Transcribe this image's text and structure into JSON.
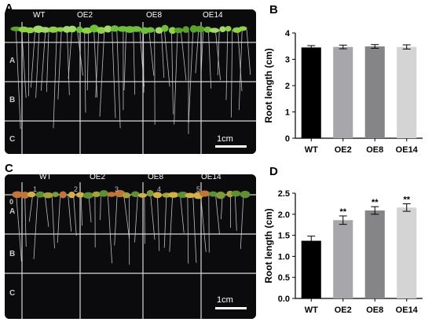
{
  "panels": {
    "a": {
      "letter": "A",
      "genotype_labels": [
        "WT",
        "OE2",
        "OE8",
        "OE14"
      ],
      "row_labels": [
        "A",
        "B",
        "C"
      ],
      "scale_label": "1cm"
    },
    "b": {
      "letter": "B"
    },
    "c": {
      "letter": "C",
      "genotype_labels": [
        "WT",
        "OE2",
        "OE8",
        "OE14"
      ],
      "row_labels": [
        "A",
        "B",
        "C"
      ],
      "number_labels": [
        "1",
        "2",
        "3",
        "4",
        "5"
      ],
      "scale_label": "1cm",
      "top_label": "0"
    },
    "d": {
      "letter": "D"
    }
  },
  "chart_data": [
    {
      "id": "B",
      "type": "bar",
      "categories": [
        "WT",
        "OE2",
        "OE8",
        "OE14"
      ],
      "values": [
        3.45,
        3.47,
        3.49,
        3.47
      ],
      "errors": [
        0.07,
        0.07,
        0.07,
        0.08
      ],
      "bar_colors": [
        "#000000",
        "#a7a7ab",
        "#858587",
        "#d4d4d4"
      ],
      "annotations": [
        "",
        "",
        "",
        ""
      ],
      "ylabel": "Root length (cm)",
      "ylim": [
        0,
        4
      ],
      "yticks": [
        "0",
        "1",
        "2",
        "3",
        "4"
      ],
      "grid": false
    },
    {
      "id": "D",
      "type": "bar",
      "categories": [
        "WT",
        "OE2",
        "OE8",
        "OE14"
      ],
      "values": [
        1.37,
        1.86,
        2.09,
        2.16
      ],
      "errors": [
        0.11,
        0.1,
        0.09,
        0.09
      ],
      "bar_colors": [
        "#000000",
        "#a7a7ab",
        "#858587",
        "#d4d4d4"
      ],
      "annotations": [
        "",
        "**",
        "**",
        "**"
      ],
      "ylabel": "Root length (cm)",
      "ylim": [
        0,
        2.5
      ],
      "yticks": [
        "0.0",
        "0.5",
        "1.0",
        "1.5",
        "2.0",
        "2.5"
      ],
      "grid": false
    }
  ]
}
